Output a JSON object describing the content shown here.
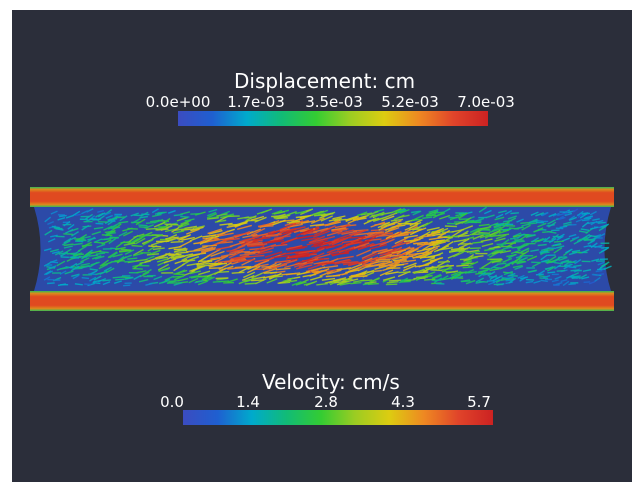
{
  "colormap": {
    "stops": [
      "#3b4cc0",
      "#1f5fd0",
      "#00aacc",
      "#11bb77",
      "#33cc33",
      "#9ccc22",
      "#ddcc11",
      "#ee8822",
      "#e0442a",
      "#cc2222"
    ]
  },
  "displacement_legend": {
    "title": "Displacement: cm",
    "ticks": [
      "0.0e+00",
      "1.7e-03",
      "3.5e-03",
      "5.2e-03",
      "7.0e-03"
    ]
  },
  "velocity_legend": {
    "title": "Velocity: cm/s",
    "ticks": [
      "0.0",
      "1.4",
      "2.8",
      "4.3",
      "5.7"
    ]
  },
  "colors": {
    "background": "#2b2e3a",
    "fluid": "#2c4aa8",
    "wall_core": "#e04a20",
    "wall_edge": "#33bb55"
  }
}
